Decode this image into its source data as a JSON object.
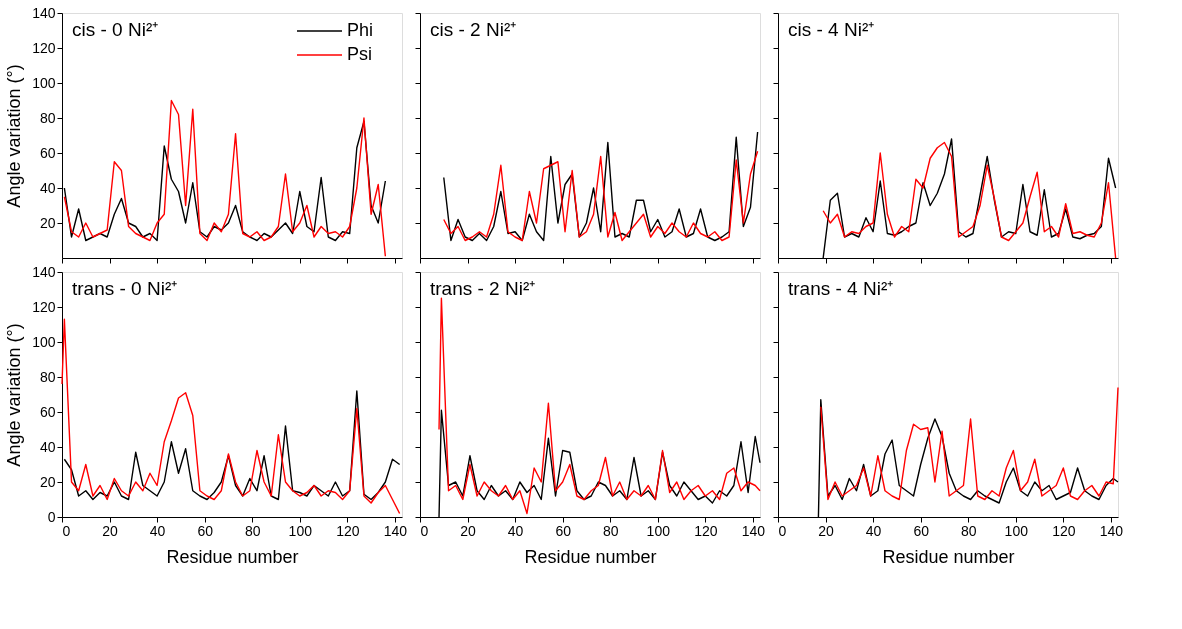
{
  "chart_data": [
    {
      "type": "line",
      "title": "cis - 0 Ni²⁺",
      "ylabel": "Angle variation (°)",
      "legend": "top right",
      "tick_labels": "y",
      "xlim": [
        0,
        143
      ],
      "ylim": [
        0,
        140
      ],
      "xticks": [
        0,
        20,
        40,
        60,
        80,
        100,
        120,
        140
      ],
      "yticks": [
        20,
        40,
        60,
        80,
        100,
        120,
        140
      ],
      "x": [
        1,
        4,
        7,
        10,
        13,
        16,
        19,
        22,
        25,
        28,
        31,
        34,
        37,
        40,
        43,
        46,
        49,
        52,
        55,
        58,
        61,
        64,
        67,
        70,
        73,
        76,
        79,
        82,
        85,
        88,
        91,
        94,
        97,
        100,
        103,
        106,
        109,
        112,
        115,
        118,
        121,
        124,
        127,
        130,
        133,
        136
      ],
      "series": [
        {
          "name": "Phi",
          "color": "#000000",
          "values": [
            40,
            12,
            28,
            10,
            12,
            14,
            12,
            25,
            34,
            20,
            18,
            12,
            14,
            10,
            64,
            45,
            38,
            20,
            43,
            15,
            12,
            18,
            16,
            20,
            30,
            15,
            12,
            10,
            14,
            12,
            16,
            20,
            14,
            38,
            18,
            15,
            46,
            12,
            10,
            15,
            14,
            63,
            78,
            30,
            20,
            44
          ]
        },
        {
          "name": "Psi",
          "color": "#ff0000",
          "values": [
            35,
            15,
            12,
            20,
            12,
            14,
            16,
            55,
            50,
            18,
            14,
            12,
            10,
            20,
            25,
            90,
            82,
            30,
            85,
            14,
            10,
            20,
            15,
            25,
            71,
            14,
            12,
            15,
            10,
            12,
            18,
            48,
            15,
            20,
            30,
            12,
            18,
            14,
            15,
            12,
            18,
            40,
            80,
            25,
            42,
            1
          ]
        }
      ]
    },
    {
      "type": "line",
      "title": "cis - 2 Ni²⁺",
      "tick_labels": false,
      "xlim": [
        0,
        143
      ],
      "ylim": [
        0,
        140
      ],
      "xticks": [
        0,
        20,
        40,
        60,
        80,
        100,
        120,
        140
      ],
      "yticks": [
        20,
        40,
        60,
        80,
        100,
        120,
        140
      ],
      "x": [
        10,
        13,
        16,
        19,
        22,
        25,
        28,
        31,
        34,
        37,
        40,
        43,
        46,
        49,
        52,
        55,
        58,
        61,
        64,
        67,
        70,
        73,
        76,
        79,
        82,
        85,
        88,
        91,
        94,
        97,
        100,
        103,
        106,
        109,
        112,
        115,
        118,
        121,
        124,
        127,
        130,
        133,
        136,
        139,
        142
      ],
      "series": [
        {
          "color": "#000000",
          "values": [
            46,
            10,
            22,
            12,
            10,
            14,
            10,
            18,
            38,
            14,
            15,
            10,
            25,
            15,
            10,
            58,
            20,
            42,
            48,
            12,
            20,
            40,
            15,
            66,
            12,
            14,
            12,
            33,
            33,
            15,
            22,
            12,
            15,
            28,
            12,
            14,
            28,
            12,
            10,
            12,
            15,
            69,
            18,
            29,
            72
          ]
        },
        {
          "color": "#ff0000",
          "values": [
            22,
            14,
            18,
            10,
            12,
            15,
            12,
            25,
            53,
            15,
            12,
            10,
            38,
            20,
            51,
            53,
            55,
            15,
            50,
            12,
            15,
            25,
            58,
            12,
            26,
            10,
            15,
            20,
            25,
            12,
            18,
            14,
            20,
            15,
            12,
            20,
            14,
            12,
            15,
            10,
            12,
            56,
            20,
            48,
            61
          ]
        }
      ]
    },
    {
      "type": "line",
      "title": "cis - 4 Ni²⁺",
      "tick_labels": false,
      "xlim": [
        0,
        143
      ],
      "ylim": [
        0,
        140
      ],
      "xticks": [
        0,
        20,
        40,
        60,
        80,
        100,
        120,
        140
      ],
      "yticks": [
        20,
        40,
        60,
        80,
        100,
        120,
        140
      ],
      "x": [
        19,
        22,
        25,
        28,
        31,
        34,
        37,
        40,
        43,
        46,
        49,
        52,
        55,
        58,
        61,
        64,
        67,
        70,
        73,
        76,
        79,
        82,
        85,
        88,
        91,
        94,
        97,
        100,
        103,
        106,
        109,
        112,
        115,
        118,
        121,
        124,
        127,
        130,
        133,
        136,
        139,
        142
      ],
      "series": [
        {
          "color": "#000000",
          "values": [
            0,
            33,
            37,
            12,
            14,
            12,
            23,
            15,
            44,
            14,
            13,
            15,
            18,
            20,
            43,
            30,
            37,
            48,
            68,
            15,
            12,
            14,
            36,
            58,
            33,
            12,
            15,
            14,
            42,
            15,
            13,
            39,
            12,
            14,
            28,
            12,
            11,
            13,
            14,
            18,
            57,
            40
          ]
        },
        {
          "color": "#ff0000",
          "values": [
            27,
            20,
            25,
            12,
            15,
            14,
            18,
            20,
            60,
            25,
            12,
            18,
            15,
            45,
            40,
            57,
            63,
            66,
            58,
            12,
            15,
            18,
            30,
            53,
            34,
            12,
            10,
            15,
            20,
            35,
            49,
            15,
            18,
            12,
            31,
            14,
            15,
            13,
            12,
            20,
            43,
            0
          ]
        }
      ]
    },
    {
      "type": "line",
      "title": "trans - 0 Ni²⁺",
      "xlabel": "Residue number",
      "ylabel": "Angle variation (°)",
      "xlim": [
        0,
        143
      ],
      "ylim": [
        0,
        140
      ],
      "xticks": [
        0,
        20,
        40,
        60,
        80,
        100,
        120,
        140
      ],
      "yticks": [
        0,
        20,
        40,
        60,
        80,
        100,
        120,
        140
      ],
      "x": [
        0,
        1,
        4,
        7,
        10,
        13,
        16,
        19,
        22,
        25,
        28,
        31,
        34,
        37,
        40,
        43,
        46,
        49,
        52,
        55,
        58,
        61,
        64,
        67,
        70,
        73,
        76,
        79,
        82,
        85,
        88,
        91,
        94,
        97,
        100,
        103,
        106,
        109,
        112,
        115,
        118,
        121,
        124,
        127,
        130,
        133,
        136,
        139,
        142
      ],
      "series": [
        {
          "color": "#000000",
          "values": [
            null,
            33,
            27,
            12,
            15,
            10,
            14,
            12,
            20,
            12,
            10,
            37,
            18,
            15,
            12,
            20,
            43,
            25,
            39,
            15,
            12,
            10,
            14,
            20,
            35,
            18,
            12,
            22,
            15,
            35,
            12,
            10,
            52,
            15,
            14,
            12,
            18,
            15,
            12,
            20,
            12,
            15,
            72,
            13,
            10,
            14,
            20,
            33,
            30
          ]
        },
        {
          "color": "#ff0000",
          "values": [
            76,
            113,
            20,
            15,
            30,
            12,
            18,
            10,
            22,
            15,
            12,
            20,
            15,
            25,
            18,
            43,
            55,
            68,
            71,
            58,
            15,
            12,
            10,
            15,
            36,
            20,
            12,
            15,
            38,
            20,
            12,
            47,
            20,
            15,
            12,
            14,
            18,
            12,
            15,
            14,
            10,
            15,
            62,
            12,
            8,
            14,
            18,
            10,
            2
          ]
        }
      ]
    },
    {
      "type": "line",
      "title": "trans - 2 Ni²⁺",
      "xlabel": "Residue number",
      "tick_labels": "x",
      "xlim": [
        0,
        143
      ],
      "ylim": [
        0,
        140
      ],
      "xticks": [
        0,
        20,
        40,
        60,
        80,
        100,
        120,
        140
      ],
      "yticks": [
        0,
        20,
        40,
        60,
        80,
        100,
        120,
        140
      ],
      "x": [
        8,
        9,
        12,
        15,
        18,
        21,
        24,
        27,
        30,
        33,
        36,
        39,
        42,
        45,
        48,
        51,
        54,
        57,
        60,
        63,
        66,
        69,
        72,
        75,
        78,
        81,
        84,
        87,
        90,
        93,
        96,
        99,
        102,
        105,
        108,
        111,
        114,
        117,
        120,
        123,
        126,
        129,
        132,
        135,
        138,
        141,
        143
      ],
      "series": [
        {
          "color": "#000000",
          "values": [
            0,
            61,
            18,
            20,
            12,
            35,
            15,
            10,
            18,
            12,
            15,
            10,
            20,
            14,
            18,
            10,
            45,
            12,
            38,
            37,
            15,
            10,
            12,
            20,
            18,
            12,
            15,
            10,
            34,
            12,
            15,
            10,
            37,
            18,
            12,
            20,
            15,
            10,
            12,
            8,
            15,
            12,
            18,
            43,
            14,
            46,
            31
          ]
        },
        {
          "color": "#ff0000",
          "values": [
            50,
            125,
            15,
            18,
            10,
            30,
            12,
            20,
            15,
            12,
            18,
            10,
            15,
            2,
            28,
            20,
            65,
            15,
            20,
            30,
            12,
            10,
            15,
            18,
            34,
            12,
            20,
            10,
            15,
            12,
            18,
            10,
            38,
            14,
            20,
            10,
            15,
            18,
            12,
            15,
            10,
            25,
            28,
            15,
            20,
            18,
            15
          ]
        }
      ]
    },
    {
      "type": "line",
      "title": "trans - 4 Ni²⁺",
      "xlabel": "Residue number",
      "tick_labels": "x",
      "xlim": [
        0,
        143
      ],
      "ylim": [
        0,
        140
      ],
      "xticks": [
        0,
        20,
        40,
        60,
        80,
        100,
        120,
        140
      ],
      "yticks": [
        0,
        20,
        40,
        60,
        80,
        100,
        120,
        140
      ],
      "x": [
        17,
        18,
        21,
        24,
        27,
        30,
        33,
        36,
        39,
        42,
        45,
        48,
        51,
        54,
        57,
        60,
        63,
        66,
        69,
        72,
        75,
        78,
        81,
        84,
        87,
        90,
        93,
        96,
        99,
        102,
        105,
        108,
        111,
        114,
        117,
        120,
        123,
        126,
        129,
        132,
        135,
        138,
        141,
        143
      ],
      "series": [
        {
          "color": "#000000",
          "values": [
            0,
            67,
            12,
            18,
            10,
            22,
            15,
            30,
            12,
            15,
            36,
            44,
            18,
            15,
            12,
            30,
            45,
            56,
            46,
            25,
            15,
            12,
            10,
            15,
            12,
            10,
            8,
            20,
            28,
            15,
            12,
            20,
            15,
            18,
            10,
            12,
            14,
            28,
            15,
            12,
            10,
            18,
            22,
            20
          ]
        },
        {
          "color": "#ff0000",
          "values": [
            null,
            63,
            10,
            20,
            12,
            15,
            18,
            28,
            12,
            35,
            15,
            12,
            10,
            38,
            53,
            50,
            51,
            20,
            49,
            12,
            15,
            18,
            56,
            12,
            10,
            15,
            12,
            28,
            38,
            15,
            20,
            33,
            12,
            15,
            18,
            28,
            12,
            10,
            15,
            18,
            12,
            20,
            19,
            74
          ]
        }
      ]
    }
  ]
}
